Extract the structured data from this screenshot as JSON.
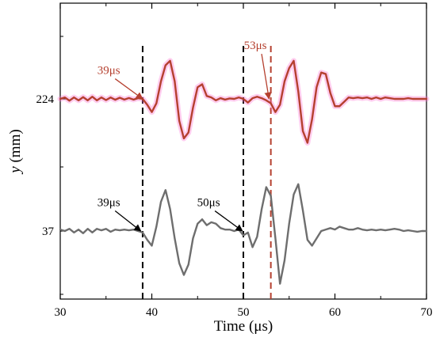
{
  "chart_data": {
    "type": "line",
    "xlabel": "Time (μs)",
    "ylabel_var": "y",
    "ylabel_unit": " (mm)",
    "xlim": [
      30,
      70
    ],
    "xticks": [
      "30",
      "40",
      "50",
      "60",
      "70"
    ],
    "yticks": [
      "224",
      "37"
    ],
    "series": [
      {
        "offset": 224,
        "color": "#b5402f",
        "glow": "#ff6fd0",
        "x": [
          30,
          30.5,
          31,
          31.5,
          32,
          32.5,
          33,
          33.5,
          34,
          34.5,
          35,
          35.5,
          36,
          36.5,
          37,
          37.5,
          38,
          38.5,
          39,
          39.5,
          40,
          40.5,
          41,
          41.5,
          42,
          42.5,
          43,
          43.5,
          44,
          44.5,
          45,
          45.5,
          46,
          46.5,
          47,
          47.5,
          48,
          48.5,
          49,
          49.5,
          50,
          50.5,
          51,
          51.5,
          52,
          52.5,
          53,
          53.5,
          54,
          54.5,
          55,
          55.5,
          56,
          56.5,
          57,
          57.5,
          58,
          58.5,
          59,
          59.5,
          60,
          60.5,
          61,
          61.5,
          62,
          62.5,
          63,
          63.5,
          64,
          64.5,
          65,
          65.5,
          66,
          66.5,
          67,
          67.5,
          68,
          68.5,
          69,
          69.5,
          70
        ],
        "y": [
          0,
          0.1,
          -0.12,
          0.1,
          -0.1,
          0.12,
          -0.1,
          0.15,
          -0.1,
          0.1,
          -0.08,
          0.1,
          -0.06,
          0.08,
          -0.05,
          0.06,
          -0.05,
          0.05,
          0,
          -0.4,
          -0.9,
          -0.3,
          1.2,
          2.3,
          2.6,
          1.2,
          -1.5,
          -2.7,
          -2.3,
          -0.6,
          0.8,
          1.0,
          0.2,
          0.1,
          -0.1,
          0.05,
          -0.05,
          0.03,
          0,
          0.1,
          0,
          -0.25,
          0.05,
          0.15,
          0.05,
          -0.1,
          -0.3,
          -0.9,
          -0.4,
          1.2,
          2.1,
          2.6,
          0.5,
          -2.2,
          -3.0,
          -1.4,
          0.8,
          1.8,
          1.7,
          0.4,
          -0.5,
          -0.5,
          -0.2,
          0.1,
          0.05,
          0.1,
          0.05,
          0.1,
          0,
          0.1,
          0,
          0.1,
          0.05,
          0,
          0,
          0,
          0.05,
          0,
          0,
          0,
          0
        ]
      },
      {
        "offset": 37,
        "color": "#6e6e6e",
        "glow": "",
        "x": [
          30,
          30.5,
          31,
          31.5,
          32,
          32.5,
          33,
          33.5,
          34,
          34.5,
          35,
          35.5,
          36,
          36.5,
          37,
          37.5,
          38,
          38.5,
          39,
          39.5,
          40,
          40.5,
          41,
          41.5,
          42,
          42.5,
          43,
          43.5,
          44,
          44.5,
          45,
          45.5,
          46,
          46.5,
          47,
          47.5,
          48,
          48.5,
          49,
          49.5,
          50,
          50.5,
          51,
          51.5,
          52,
          52.5,
          53,
          53.5,
          54,
          54.5,
          55,
          55.5,
          56,
          56.5,
          57,
          57.5,
          58,
          58.5,
          59,
          59.5,
          60,
          60.5,
          61,
          61.5,
          62,
          62.5,
          63,
          63.5,
          64,
          64.5,
          65,
          65.5,
          66,
          66.5,
          67,
          67.5,
          68,
          68.5,
          69,
          69.5,
          70
        ],
        "y": [
          0.1,
          0.0,
          0.15,
          -0.1,
          0.1,
          -0.15,
          0.15,
          -0.1,
          0.15,
          0.05,
          0.15,
          -0.05,
          0.1,
          0.05,
          0.1,
          0.05,
          0.1,
          0.0,
          -0.1,
          -0.6,
          -1.0,
          0.3,
          2.0,
          2.8,
          1.5,
          -0.5,
          -2.2,
          -3.0,
          -2.3,
          -0.5,
          0.5,
          0.8,
          0.4,
          0.6,
          0.5,
          0.2,
          0.1,
          0.1,
          0.0,
          0.1,
          -0.3,
          -0.1,
          -1.1,
          -0.4,
          1.5,
          3.0,
          2.4,
          -0.5,
          -3.6,
          -2.0,
          0.5,
          2.5,
          3.2,
          1.4,
          -0.6,
          -1.0,
          -0.5,
          0.0,
          0.1,
          0.2,
          0.1,
          0.3,
          0.2,
          0.1,
          0.1,
          0.2,
          0.1,
          0.05,
          0.1,
          0.05,
          0.1,
          0.05,
          0.1,
          0.15,
          0.1,
          0.0,
          0.05,
          0.0,
          -0.05,
          0.0,
          0.0
        ]
      }
    ],
    "vlines": [
      {
        "x": 39,
        "color": "#000000"
      },
      {
        "x": 50,
        "color": "#000000"
      },
      {
        "x": 53,
        "color": "#b5402f"
      }
    ],
    "annotations": [
      {
        "text": "39μs",
        "color": "#b5402f",
        "tx": 35.3,
        "ty": 224,
        "tdy": 1.7,
        "ax": 39,
        "ay": 224,
        "ady": 0
      },
      {
        "text": "53μs",
        "color": "#b5402f",
        "tx": 51.3,
        "ty": 224,
        "tdy": 3.4,
        "ax": 52.8,
        "ay": 224,
        "ady": 0
      },
      {
        "text": "39μs",
        "color": "#000000",
        "tx": 35.3,
        "ty": 37,
        "tdy": 1.7,
        "ax": 38.8,
        "ay": 37,
        "ady": 0
      },
      {
        "text": "50μs",
        "color": "#000000",
        "tx": 46.2,
        "ty": 37,
        "tdy": 1.7,
        "ax": 49.9,
        "ay": 37,
        "ady": 0
      }
    ]
  }
}
